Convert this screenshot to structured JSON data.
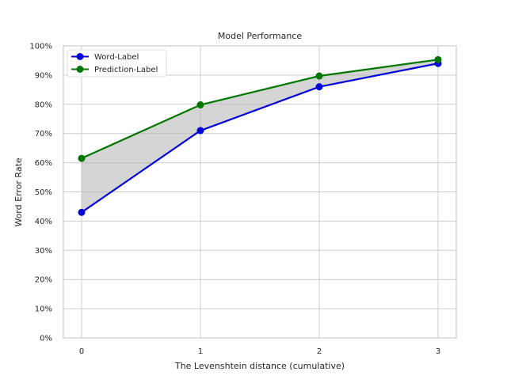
{
  "chart_data": {
    "type": "line",
    "title": "Model Performance",
    "xlabel": "The Levenshtein distance (cumulative)",
    "ylabel": "Word Error Rate",
    "x": [
      0,
      1,
      2,
      3
    ],
    "x_tick_labels": [
      "0",
      "1",
      "2",
      "3"
    ],
    "ylim": [
      0,
      1
    ],
    "y_ticks": [
      0,
      0.1,
      0.2,
      0.3,
      0.4,
      0.5,
      0.6,
      0.7,
      0.8,
      0.9,
      1.0
    ],
    "y_tick_labels": [
      "0%",
      "10%",
      "20%",
      "30%",
      "40%",
      "50%",
      "60%",
      "70%",
      "80%",
      "90%",
      "100%"
    ],
    "series": [
      {
        "name": "Word-Label",
        "color": "#0000dd",
        "values": [
          0.43,
          0.71,
          0.86,
          0.94
        ]
      },
      {
        "name": "Prediction-Label",
        "color": "#007700",
        "values": [
          0.615,
          0.798,
          0.897,
          0.953
        ]
      }
    ],
    "fill_between": {
      "color": "#b3b3b3",
      "opacity": 0.55
    },
    "grid": true,
    "legend_position": "top-left"
  }
}
